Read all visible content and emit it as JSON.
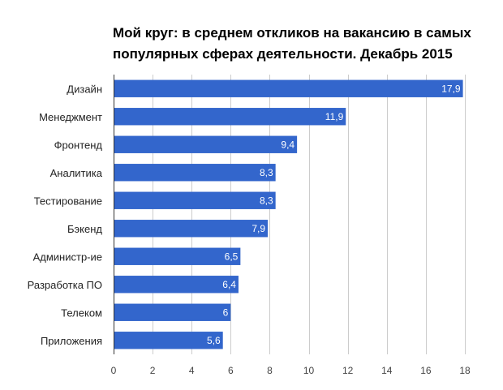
{
  "chart_data": {
    "type": "bar",
    "orientation": "horizontal",
    "title_lines": [
      "Мой круг: в среднем откликов на вакансию в самых",
      "популярных сферах деятельности. Декабрь 2015"
    ],
    "categories": [
      "Дизайн",
      "Менеджмент",
      "Фронтенд",
      "Аналитика",
      "Тестирование",
      "Бэкенд",
      "Администр-ие",
      "Разработка ПО",
      "Телеком",
      "Приложения"
    ],
    "values": [
      17.9,
      11.9,
      9.4,
      8.3,
      8.3,
      7.9,
      6.5,
      6.4,
      6,
      5.6
    ],
    "value_labels": [
      "17,9",
      "11,9",
      "9,4",
      "8,3",
      "8,3",
      "7,9",
      "6,5",
      "6,4",
      "6",
      "5,6"
    ],
    "x_ticks": [
      0,
      2,
      4,
      6,
      8,
      10,
      12,
      14,
      16,
      18
    ],
    "x_tick_labels": [
      "0",
      "2",
      "4",
      "6",
      "8",
      "10",
      "12",
      "14",
      "16",
      "18"
    ],
    "xlim": [
      0,
      18
    ],
    "xlabel": "",
    "ylabel": "",
    "grid": true,
    "bar_color": "#3366cc",
    "grid_color": "#cccccc",
    "axis_color": "#333333"
  }
}
